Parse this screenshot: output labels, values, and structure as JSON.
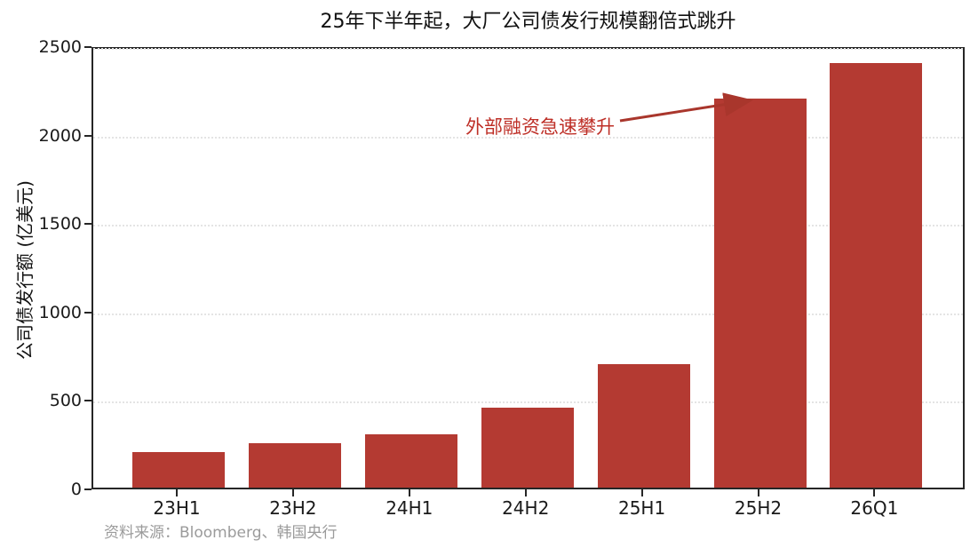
{
  "figure": {
    "source_note": "资料来源：Bloomberg、韩国央行"
  },
  "chart_data": {
    "type": "bar",
    "title": "25年下半年起，大厂公司债发行规模翻倍式跳升",
    "categories": [
      "23H1",
      "23H2",
      "24H1",
      "24H2",
      "25H1",
      "25H2",
      "26Q1"
    ],
    "values": [
      200,
      250,
      300,
      450,
      700,
      2200,
      2400
    ],
    "xlabel": "",
    "ylabel": "公司债发行额 (亿美元)",
    "ylim": [
      0,
      2500
    ],
    "yticks": [
      0,
      500,
      1000,
      1500,
      2000,
      2500
    ],
    "grid": "horizontal-dotted",
    "legend": "none",
    "annotation": {
      "text": "外部融资急速攀升",
      "arrow_points_to": "25H2"
    },
    "colors": {
      "bar": "#B43A32",
      "annotation_text": "#BE2F27",
      "arrow": "#A9362C",
      "axis": "#262626",
      "gridline": "#E4E4E4",
      "source_text": "#9B9B9B"
    }
  }
}
